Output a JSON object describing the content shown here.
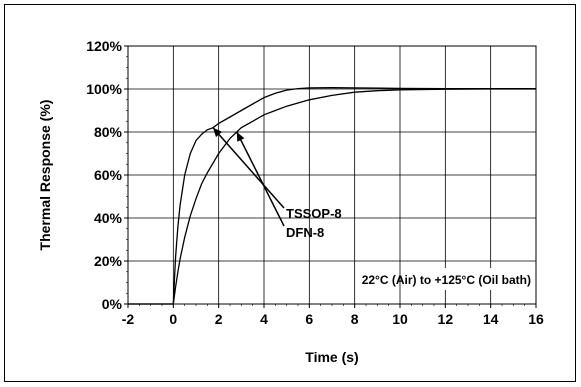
{
  "chart_data": {
    "type": "line",
    "xlabel": "Time (s)",
    "ylabel": "Thermal Response (%)",
    "xlim": [
      -2,
      16
    ],
    "ylim": [
      0,
      120
    ],
    "xticks": [
      -2,
      0,
      2,
      4,
      6,
      8,
      10,
      12,
      14,
      16
    ],
    "yticks": [
      0,
      20,
      40,
      60,
      80,
      100,
      120
    ],
    "ytick_labels": [
      "0%",
      "20%",
      "40%",
      "60%",
      "80%",
      "100%",
      "120%"
    ],
    "grid": true,
    "annotations": [
      {
        "text": "TSSOP-8",
        "points_to": {
          "x": 1.75,
          "y": 82
        }
      },
      {
        "text": "DFN-8",
        "points_to": {
          "x": 2.8,
          "y": 80
        }
      }
    ],
    "condition_note": "22°C (Air) to +125°C (Oil bath)",
    "series": [
      {
        "name": "TSSOP-8",
        "x": [
          -2,
          -0.01,
          0,
          0.05,
          0.1,
          0.2,
          0.3,
          0.5,
          0.75,
          1.0,
          1.25,
          1.5,
          1.75,
          2.0,
          2.5,
          3.0,
          3.5,
          4.0,
          4.5,
          5.0,
          5.5,
          6.0,
          7.0,
          8.0,
          10.0,
          12.0,
          14.0,
          16.0
        ],
        "y": [
          0,
          0,
          0,
          12,
          22,
          36,
          46,
          60,
          70,
          76,
          79,
          81,
          82,
          84,
          87,
          90,
          93,
          96,
          98,
          99.5,
          100.2,
          100.5,
          100.6,
          100.5,
          100.3,
          100.2,
          100.2,
          100.2
        ]
      },
      {
        "name": "DFN-8",
        "x": [
          -2,
          -0.01,
          0,
          0.1,
          0.2,
          0.3,
          0.5,
          0.75,
          1.0,
          1.25,
          1.5,
          2.0,
          2.5,
          3.0,
          3.5,
          4.0,
          4.5,
          5.0,
          6.0,
          7.0,
          8.0,
          9.0,
          10.0,
          12.0,
          14.0,
          16.0
        ],
        "y": [
          0,
          0,
          0,
          8,
          15,
          21,
          31,
          41,
          49,
          56,
          61,
          70,
          77,
          82,
          85,
          88,
          90,
          92,
          95,
          97,
          98.5,
          99.2,
          99.6,
          99.9,
          100,
          100
        ]
      }
    ]
  }
}
